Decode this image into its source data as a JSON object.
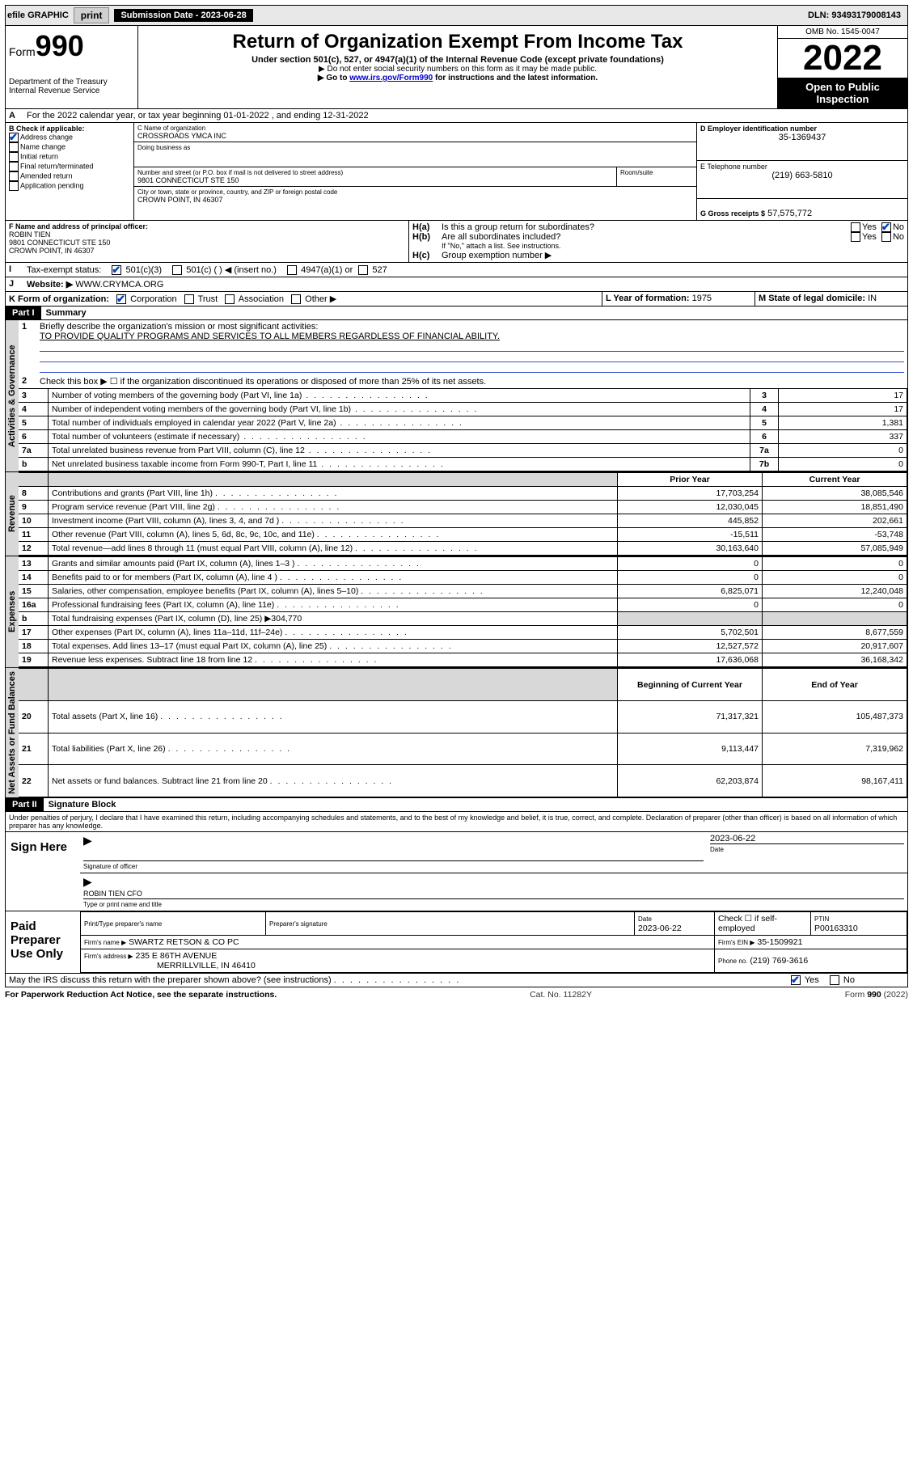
{
  "top": {
    "efile": "efile GRAPHIC",
    "print": "print",
    "sub_label": "Submission Date - 2023-06-28",
    "dln": "DLN: 93493179008143"
  },
  "header": {
    "form_prefix": "Form",
    "form_num": "990",
    "dept": "Department of the Treasury\nInternal Revenue Service",
    "title": "Return of Organization Exempt From Income Tax",
    "subtitle": "Under section 501(c), 527, or 4947(a)(1) of the Internal Revenue Code (except private foundations)",
    "note1": "▶ Do not enter social security numbers on this form as it may be made public.",
    "note2_pre": "▶ Go to ",
    "note2_link": "www.irs.gov/Form990",
    "note2_post": " for instructions and the latest information.",
    "omb": "OMB No. 1545-0047",
    "year": "2022",
    "open": "Open to Public Inspection"
  },
  "A": {
    "text": "For the 2022 calendar year, or tax year beginning 01-01-2022   , and ending 12-31-2022"
  },
  "B": {
    "label": "B Check if applicable:",
    "items": [
      "Address change",
      "Name change",
      "Initial return",
      "Final return/terminated",
      "Amended return",
      "Application pending"
    ]
  },
  "C": {
    "label": "C Name of organization",
    "name": "CROSSROADS YMCA INC",
    "dba": "Doing business as",
    "addr_label": "Number and street (or P.O. box if mail is not delivered to street address)",
    "room": "Room/suite",
    "addr": "9801 CONNECTICUT STE 150",
    "city_label": "City or town, state or province, country, and ZIP or foreign postal code",
    "city": "CROWN POINT, IN  46307"
  },
  "D": {
    "label": "D Employer identification number",
    "val": "35-1369437"
  },
  "E": {
    "label": "E Telephone number",
    "val": "(219) 663-5810"
  },
  "G": {
    "label": "G Gross receipts $",
    "val": "57,575,772"
  },
  "F": {
    "label": "F Name and address of principal officer:",
    "name": "ROBIN TIEN",
    "addr1": "9801 CONNECTICUT STE 150",
    "addr2": "CROWN POINT, IN  46307"
  },
  "H": {
    "a": "Is this a group return for subordinates?",
    "b": "Are all subordinates included?",
    "b_note": "If \"No,\" attach a list. See instructions.",
    "c": "Group exemption number ▶"
  },
  "I": {
    "label": "Tax-exempt status:",
    "opts": [
      "501(c)(3)",
      "501(c) (  ) ◀ (insert no.)",
      "4947(a)(1) or",
      "527"
    ]
  },
  "J": {
    "label": "Website: ▶",
    "val": "WWW.CRYMCA.ORG"
  },
  "K": {
    "label": "K Form of organization:",
    "opts": [
      "Corporation",
      "Trust",
      "Association",
      "Other ▶"
    ]
  },
  "L": {
    "label": "L Year of formation:",
    "val": "1975"
  },
  "M": {
    "label": "M State of legal domicile:",
    "val": "IN"
  },
  "part1": {
    "hdr": "Part I",
    "title": "Summary",
    "q1": "Briefly describe the organization's mission or most significant activities:",
    "mission": "TO PROVIDE QUALITY PROGRAMS AND SERVICES TO ALL MEMBERS REGARDLESS OF FINANCIAL ABILITY.",
    "q2": "Check this box ▶ ☐ if the organization discontinued its operations or disposed of more than 25% of its net assets.",
    "side_gov": "Activities & Governance",
    "side_rev": "Revenue",
    "side_exp": "Expenses",
    "side_net": "Net Assets or Fund Balances",
    "col_prior": "Prior Year",
    "col_curr": "Current Year",
    "col_beg": "Beginning of Current Year",
    "col_end": "End of Year",
    "rows_gov": [
      {
        "n": "3",
        "t": "Number of voting members of the governing body (Part VI, line 1a)",
        "v": "17"
      },
      {
        "n": "4",
        "t": "Number of independent voting members of the governing body (Part VI, line 1b)",
        "v": "17"
      },
      {
        "n": "5",
        "t": "Total number of individuals employed in calendar year 2022 (Part V, line 2a)",
        "v": "1,381"
      },
      {
        "n": "6",
        "t": "Total number of volunteers (estimate if necessary)",
        "v": "337"
      },
      {
        "n": "7a",
        "t": "Total unrelated business revenue from Part VIII, column (C), line 12",
        "v": "0"
      },
      {
        "n": "b",
        "t": "Net unrelated business taxable income from Form 990-T, Part I, line 11",
        "lbl": "7b",
        "v": "0"
      }
    ],
    "rows_rev": [
      {
        "n": "8",
        "t": "Contributions and grants (Part VIII, line 1h)",
        "p": "17,703,254",
        "c": "38,085,546"
      },
      {
        "n": "9",
        "t": "Program service revenue (Part VIII, line 2g)",
        "p": "12,030,045",
        "c": "18,851,490"
      },
      {
        "n": "10",
        "t": "Investment income (Part VIII, column (A), lines 3, 4, and 7d )",
        "p": "445,852",
        "c": "202,661"
      },
      {
        "n": "11",
        "t": "Other revenue (Part VIII, column (A), lines 5, 6d, 8c, 9c, 10c, and 11e)",
        "p": "-15,511",
        "c": "-53,748"
      },
      {
        "n": "12",
        "t": "Total revenue—add lines 8 through 11 (must equal Part VIII, column (A), line 12)",
        "p": "30,163,640",
        "c": "57,085,949"
      }
    ],
    "rows_exp": [
      {
        "n": "13",
        "t": "Grants and similar amounts paid (Part IX, column (A), lines 1–3 )",
        "p": "0",
        "c": "0"
      },
      {
        "n": "14",
        "t": "Benefits paid to or for members (Part IX, column (A), line 4 )",
        "p": "0",
        "c": "0"
      },
      {
        "n": "15",
        "t": "Salaries, other compensation, employee benefits (Part IX, column (A), lines 5–10)",
        "p": "6,825,071",
        "c": "12,240,048"
      },
      {
        "n": "16a",
        "t": "Professional fundraising fees (Part IX, column (A), line 11e)",
        "p": "0",
        "c": "0"
      },
      {
        "n": "b",
        "t": "Total fundraising expenses (Part IX, column (D), line 25) ▶304,770",
        "p": "",
        "c": "",
        "shade": true
      },
      {
        "n": "17",
        "t": "Other expenses (Part IX, column (A), lines 11a–11d, 11f–24e)",
        "p": "5,702,501",
        "c": "8,677,559"
      },
      {
        "n": "18",
        "t": "Total expenses. Add lines 13–17 (must equal Part IX, column (A), line 25)",
        "p": "12,527,572",
        "c": "20,917,607"
      },
      {
        "n": "19",
        "t": "Revenue less expenses. Subtract line 18 from line 12",
        "p": "17,636,068",
        "c": "36,168,342"
      }
    ],
    "rows_net": [
      {
        "n": "20",
        "t": "Total assets (Part X, line 16)",
        "p": "71,317,321",
        "c": "105,487,373"
      },
      {
        "n": "21",
        "t": "Total liabilities (Part X, line 26)",
        "p": "9,113,447",
        "c": "7,319,962"
      },
      {
        "n": "22",
        "t": "Net assets or fund balances. Subtract line 21 from line 20",
        "p": "62,203,874",
        "c": "98,167,411"
      }
    ]
  },
  "part2": {
    "hdr": "Part II",
    "title": "Signature Block",
    "decl": "Under penalties of perjury, I declare that I have examined this return, including accompanying schedules and statements, and to the best of my knowledge and belief, it is true, correct, and complete. Declaration of preparer (other than officer) is based on all information of which preparer has any knowledge.",
    "sign_here": "Sign Here",
    "sig_officer": "Signature of officer",
    "date": "Date",
    "date_val": "2023-06-22",
    "officer_name": "ROBIN TIEN  CFO",
    "type_name": "Type or print name and title",
    "paid": "Paid Preparer Use Only",
    "prep_name": "Print/Type preparer's name",
    "prep_sig": "Preparer's signature",
    "prep_date": "Date",
    "prep_date_val": "2023-06-22",
    "check_self": "Check ☐ if self-employed",
    "ptin_lbl": "PTIN",
    "ptin": "P00163310",
    "firm_name_lbl": "Firm's name    ▶",
    "firm_name": "SWARTZ RETSON & CO PC",
    "firm_ein_lbl": "Firm's EIN ▶",
    "firm_ein": "35-1509921",
    "firm_addr_lbl": "Firm's address ▶",
    "firm_addr1": "235 E 86TH AVENUE",
    "firm_addr2": "MERRILLVILLE, IN  46410",
    "phone_lbl": "Phone no.",
    "phone": "(219) 769-3616",
    "discuss": "May the IRS discuss this return with the preparer shown above? (see instructions)"
  },
  "footer": {
    "pra": "For Paperwork Reduction Act Notice, see the separate instructions.",
    "cat": "Cat. No. 11282Y",
    "form": "Form 990 (2022)"
  }
}
